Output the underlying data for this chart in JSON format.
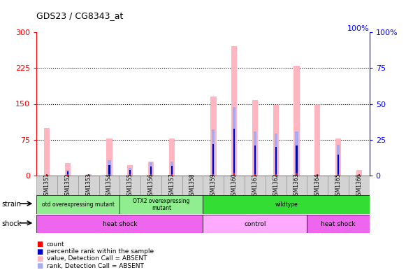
{
  "title": "GDS23 / CG8343_at",
  "samples": [
    "GSM1351",
    "GSM1352",
    "GSM1353",
    "GSM1354",
    "GSM1355",
    "GSM1356",
    "GSM1357",
    "GSM1358",
    "GSM1359",
    "GSM1360",
    "GSM1361",
    "GSM1362",
    "GSM1363",
    "GSM1364",
    "GSM1365",
    "GSM1366"
  ],
  "pink_values": [
    100,
    27,
    3,
    78,
    22,
    30,
    78,
    0,
    165,
    270,
    158,
    148,
    230,
    148,
    78,
    12
  ],
  "blue_values": [
    0,
    13,
    2,
    32,
    17,
    28,
    30,
    0,
    97,
    143,
    93,
    88,
    93,
    0,
    65,
    0
  ],
  "red_values": [
    3,
    3,
    3,
    3,
    3,
    3,
    3,
    0,
    3,
    6,
    3,
    3,
    6,
    3,
    3,
    3
  ],
  "blue2_values": [
    0,
    9,
    1,
    22,
    12,
    20,
    21,
    0,
    66,
    98,
    63,
    60,
    63,
    0,
    44,
    0
  ],
  "ylim_left": [
    0,
    300
  ],
  "ylim_right": [
    0,
    100
  ],
  "yticks_left": [
    0,
    75,
    150,
    225,
    300
  ],
  "yticks_right": [
    0,
    25,
    50,
    75,
    100
  ],
  "pink_color": "#FFB6C1",
  "blue_color": "#AAAAEE",
  "red_color": "#FF0000",
  "dark_blue_color": "#0000CC",
  "left_axis_color": "#FF0000",
  "right_axis_color": "#0000FF",
  "strain_groups": [
    {
      "label": "otd overexpressing mutant",
      "start": 0,
      "end": 4,
      "color": "#90EE90"
    },
    {
      "label": "OTX2 overexpressing\nmutant",
      "start": 4,
      "end": 8,
      "color": "#90EE90"
    },
    {
      "label": "wildtype",
      "start": 8,
      "end": 16,
      "color": "#33DD33"
    }
  ],
  "shock_groups": [
    {
      "label": "heat shock",
      "start": 0,
      "end": 8,
      "color": "#EE66EE"
    },
    {
      "label": "control",
      "start": 8,
      "end": 13,
      "color": "#FFAAFF"
    },
    {
      "label": "heat shock",
      "start": 13,
      "end": 16,
      "color": "#EE66EE"
    }
  ],
  "legend_labels": [
    "count",
    "percentile rank within the sample",
    "value, Detection Call = ABSENT",
    "rank, Detection Call = ABSENT"
  ],
  "legend_colors": [
    "#FF0000",
    "#0000CC",
    "#FFB6C1",
    "#AAAAEE"
  ]
}
